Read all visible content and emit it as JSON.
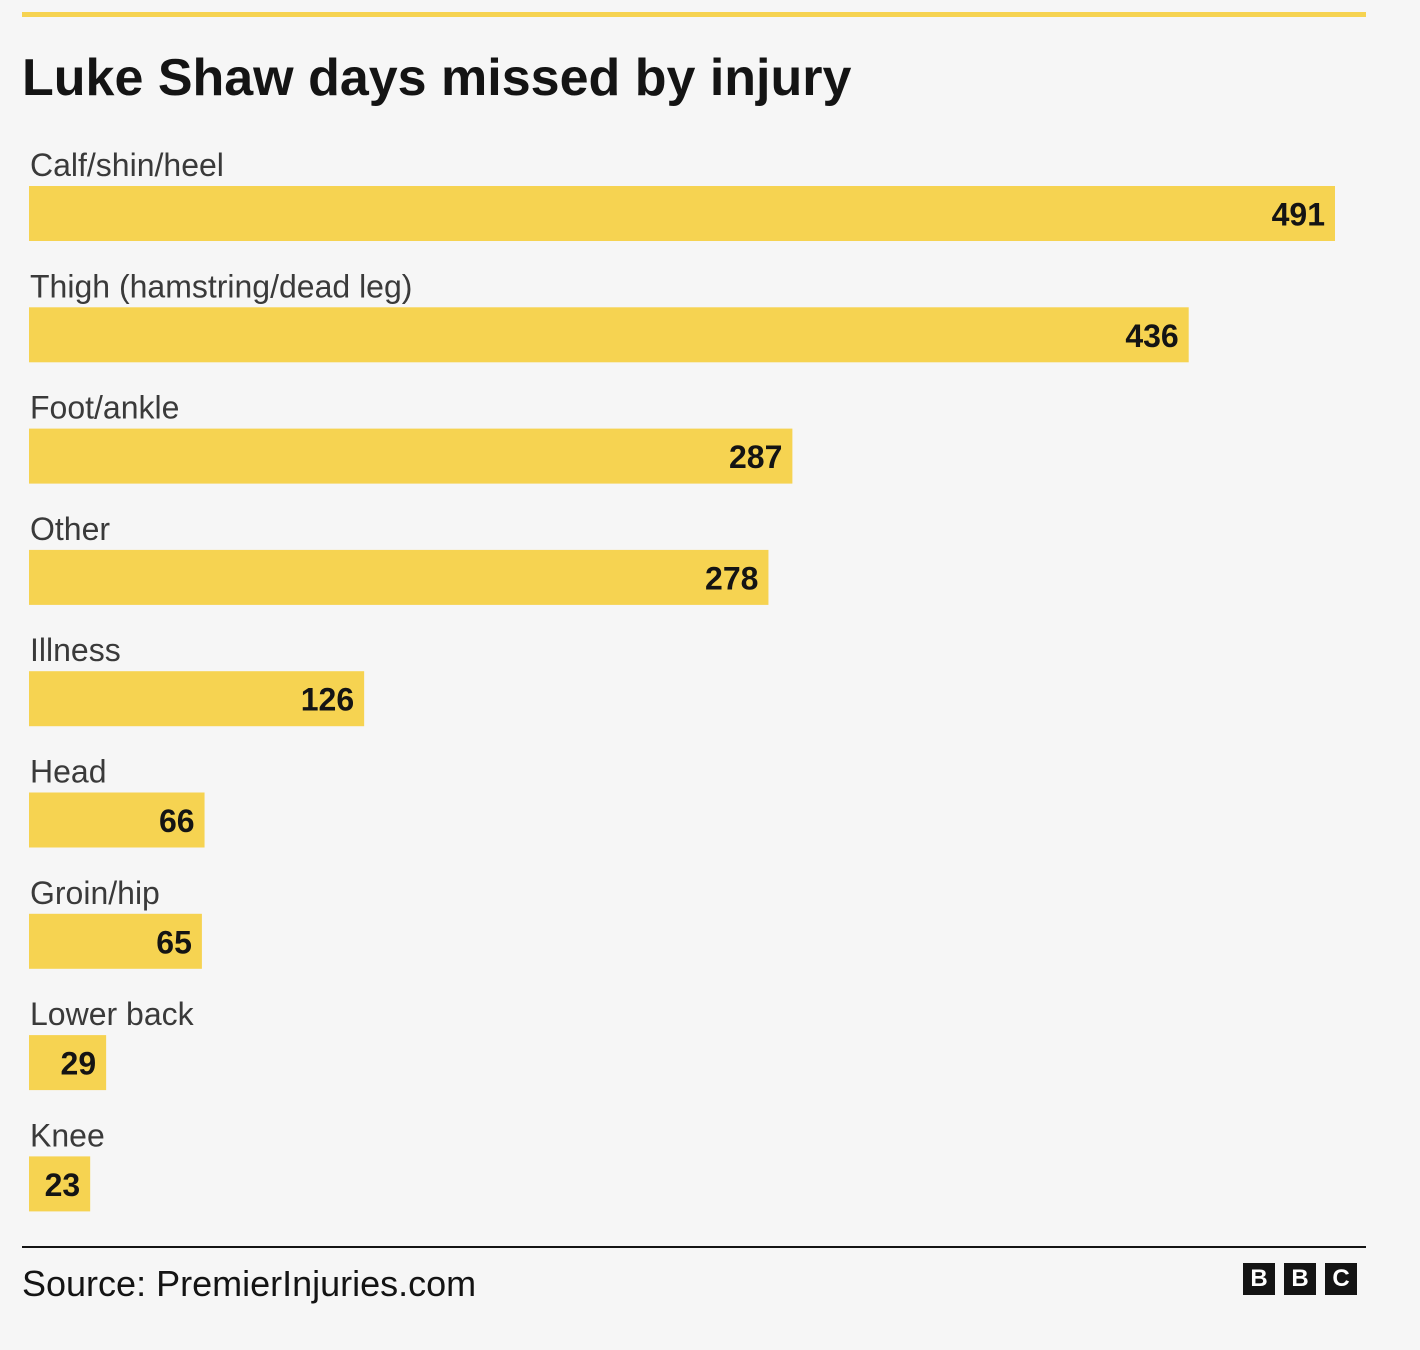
{
  "chart_data": {
    "type": "bar",
    "orientation": "horizontal",
    "title": "Luke Shaw days missed by injury",
    "categories": [
      "Calf/shin/heel",
      "Thigh (hamstring/dead leg)",
      "Foot/ankle",
      "Other",
      "Illness",
      "Head",
      "Groin/hip",
      "Lower back",
      "Knee"
    ],
    "values": [
      491,
      436,
      287,
      278,
      126,
      66,
      65,
      29,
      23
    ],
    "data_labels": [
      "491",
      "436",
      "287",
      "278",
      "126",
      "66",
      "65",
      "29",
      "23"
    ],
    "bar_color": "#f6d351",
    "xlim": [
      0,
      491
    ],
    "grid": false,
    "legend": false
  },
  "colors": {
    "accent": "#f6d351",
    "text": "#141414",
    "background": "#f6f6f6"
  },
  "footer": {
    "source": "Source: PremierInjuries.com",
    "logo": [
      "B",
      "B",
      "C"
    ]
  }
}
